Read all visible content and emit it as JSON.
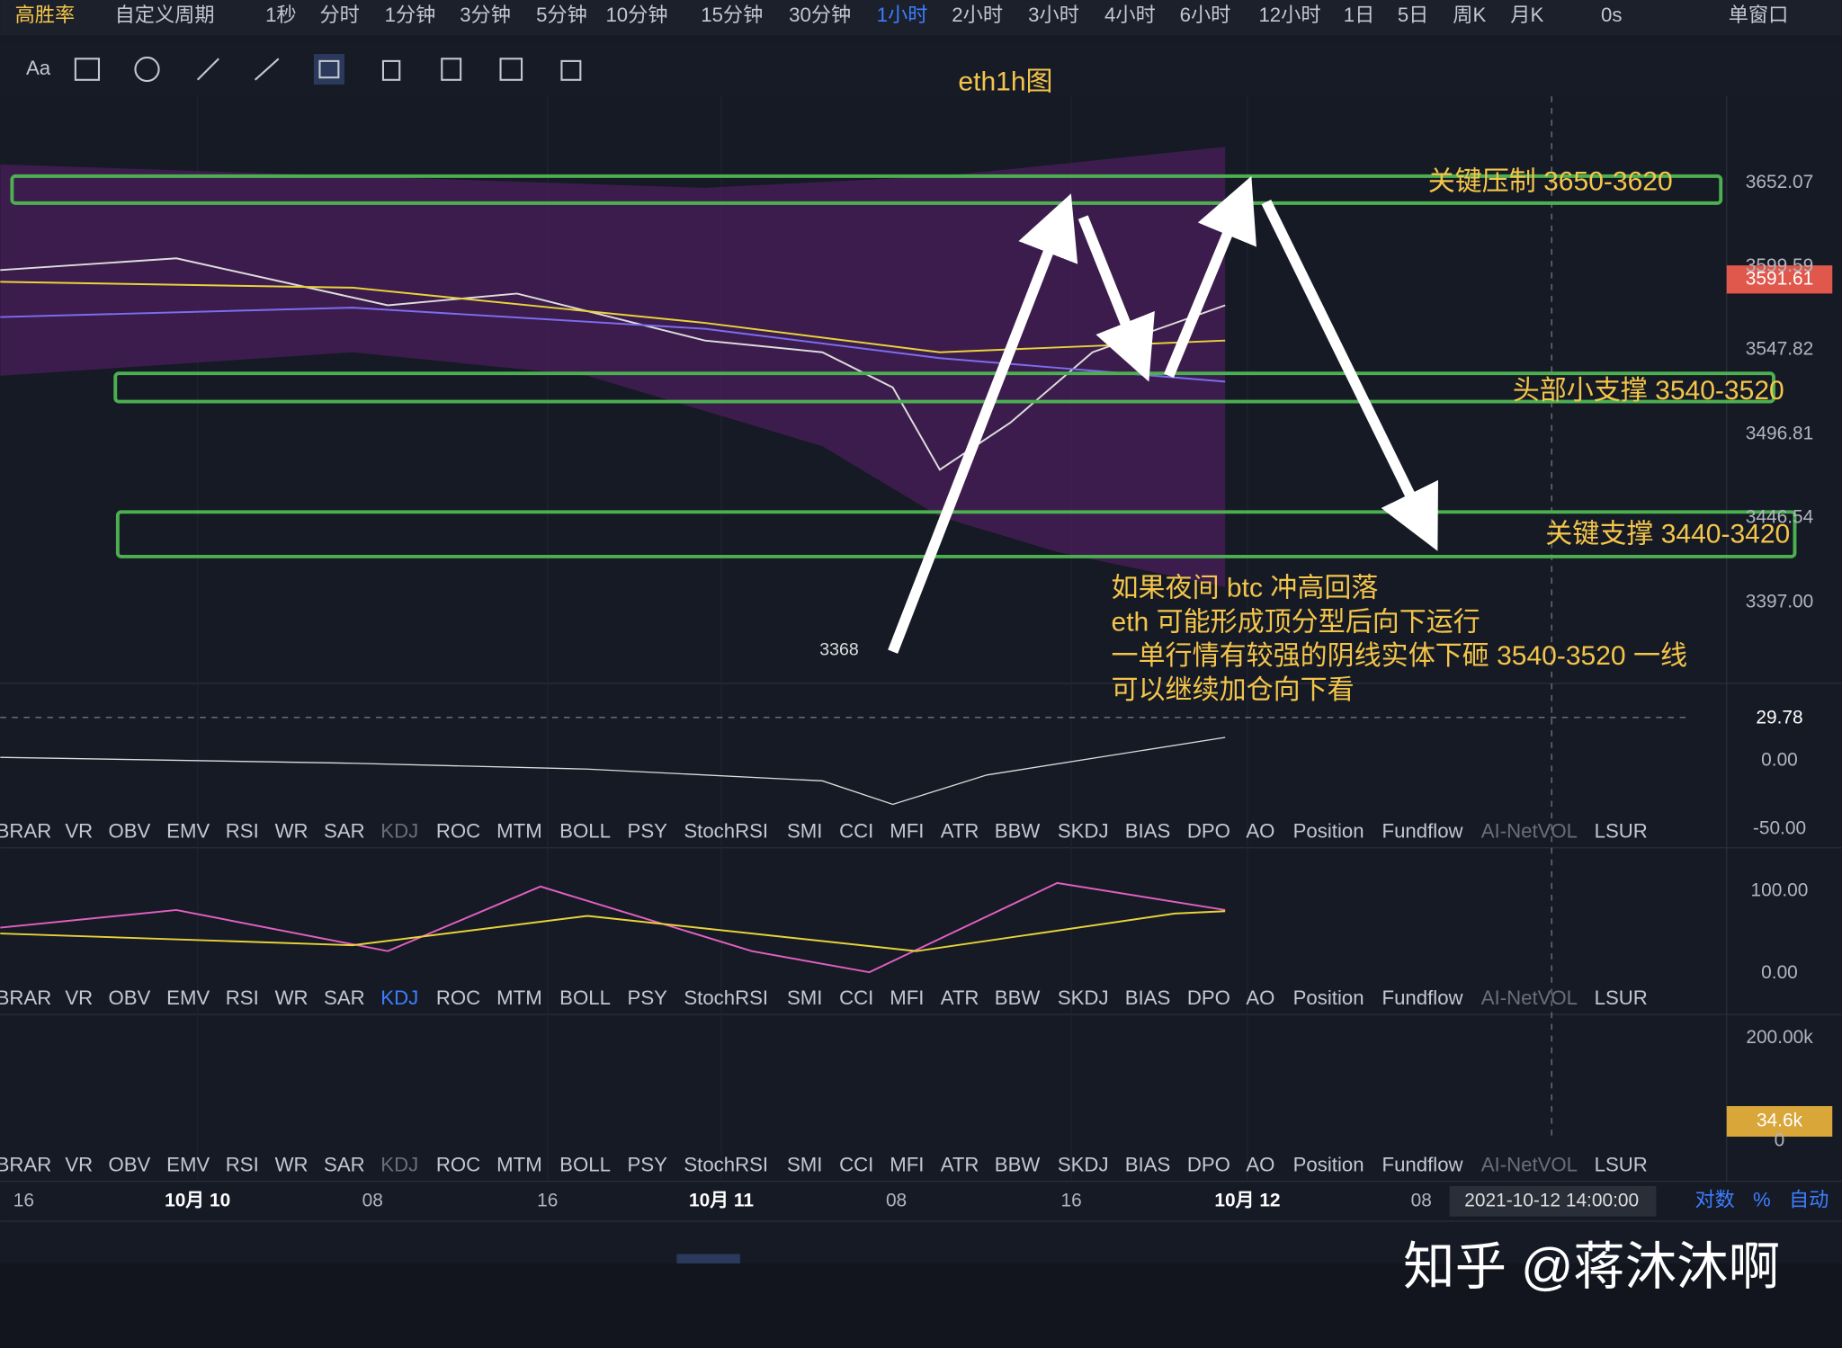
{
  "top_toolbar": {
    "items": [
      "高胜率",
      "自定义周期",
      "1秒",
      "分时",
      "1分钟",
      "3分钟",
      "5分钟",
      "10分钟",
      "15分钟",
      "30分钟",
      "1小时",
      "2小时",
      "3小时",
      "4小时",
      "6小时",
      "12小时",
      "1日",
      "5日",
      "周K",
      "月K",
      "0s",
      "单窗口"
    ],
    "active": "1小时"
  },
  "drawing_toolbar": {
    "font_button": "Aa"
  },
  "chart_title": "eth1h图",
  "price_axis": {
    "labels": [
      "3652.07",
      "3599.59",
      "3547.82",
      "3496.81",
      "3446.54",
      "3397.00"
    ],
    "current_price": "3591.61"
  },
  "annotations": {
    "zones": [
      "关键压制 3650-3620",
      "头部小支撑 3540-3520",
      "关键支撑 3440-3420"
    ],
    "low_label": "3368",
    "note": [
      "如果夜间 btc 冲高回落",
      "eth 可能形成顶分型后向下运行",
      "一单行情有较强的阴线实体下砸 3540-3520 一线",
      "可以继续加仓向下看"
    ]
  },
  "indicator_tabs": [
    "BRAR",
    "VR",
    "OBV",
    "EMV",
    "RSI",
    "WR",
    "SAR",
    "KDJ",
    "ROC",
    "MTM",
    "BOLL",
    "PSY",
    "StochRSI",
    "SMI",
    "CCI",
    "MFI",
    "ATR",
    "BBW",
    "SKDJ",
    "BIAS",
    "DPO",
    "AO",
    "Position",
    "Fundflow",
    "AI-NetVOL",
    "LSUR"
  ],
  "panels": [
    {
      "axis_labels": [
        "29.78",
        "0.00",
        "-50.00"
      ]
    },
    {
      "axis_labels": [
        "100.00",
        "0.00"
      ],
      "active_tab": "KDJ"
    },
    {
      "axis_labels": [
        "200.00k",
        "34.6k",
        "0"
      ]
    }
  ],
  "time_axis": {
    "labels": [
      "16",
      "10月 10",
      "08",
      "16",
      "10月 11",
      "08",
      "16",
      "10月 12",
      "08"
    ],
    "crosshair_time": "2021-10-12 14:00:00",
    "options": [
      "对数",
      "%",
      "自动"
    ]
  },
  "watermark": "知乎 @蒋沐沐啊"
}
